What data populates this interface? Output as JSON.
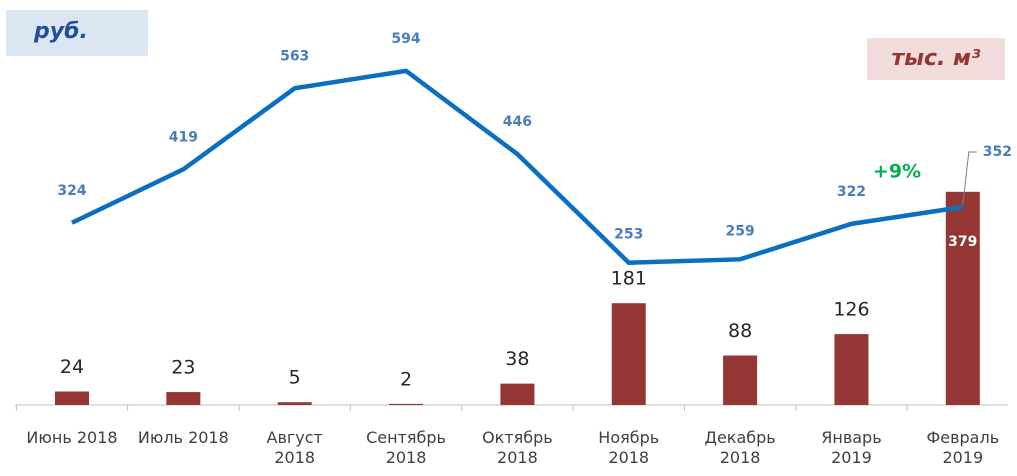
{
  "chart_data": {
    "type": "bar-line",
    "categories": [
      "Июнь 2018",
      "Июль 2018",
      "Август 2018",
      "Сентябрь 2018",
      "Октябрь 2018",
      "Ноябрь 2018",
      "Декабрь 2018",
      "Январь 2019",
      "Февраль 2019"
    ],
    "series": [
      {
        "type": "line",
        "color": "#0b6fc1",
        "values": [
          324,
          419,
          563,
          594,
          446,
          253,
          259,
          322,
          352
        ]
      },
      {
        "type": "bar",
        "axis": "y2",
        "color": "#943634",
        "values": [
          24,
          23,
          5,
          2,
          38,
          181,
          88,
          126,
          379
        ]
      }
    ],
    "ylim": [
      0,
      720
    ],
    "y2lim": [
      0,
      720
    ],
    "ylabel": "руб.",
    "y2label": "тыс. м³",
    "annotations": [
      "+9%"
    ]
  }
}
